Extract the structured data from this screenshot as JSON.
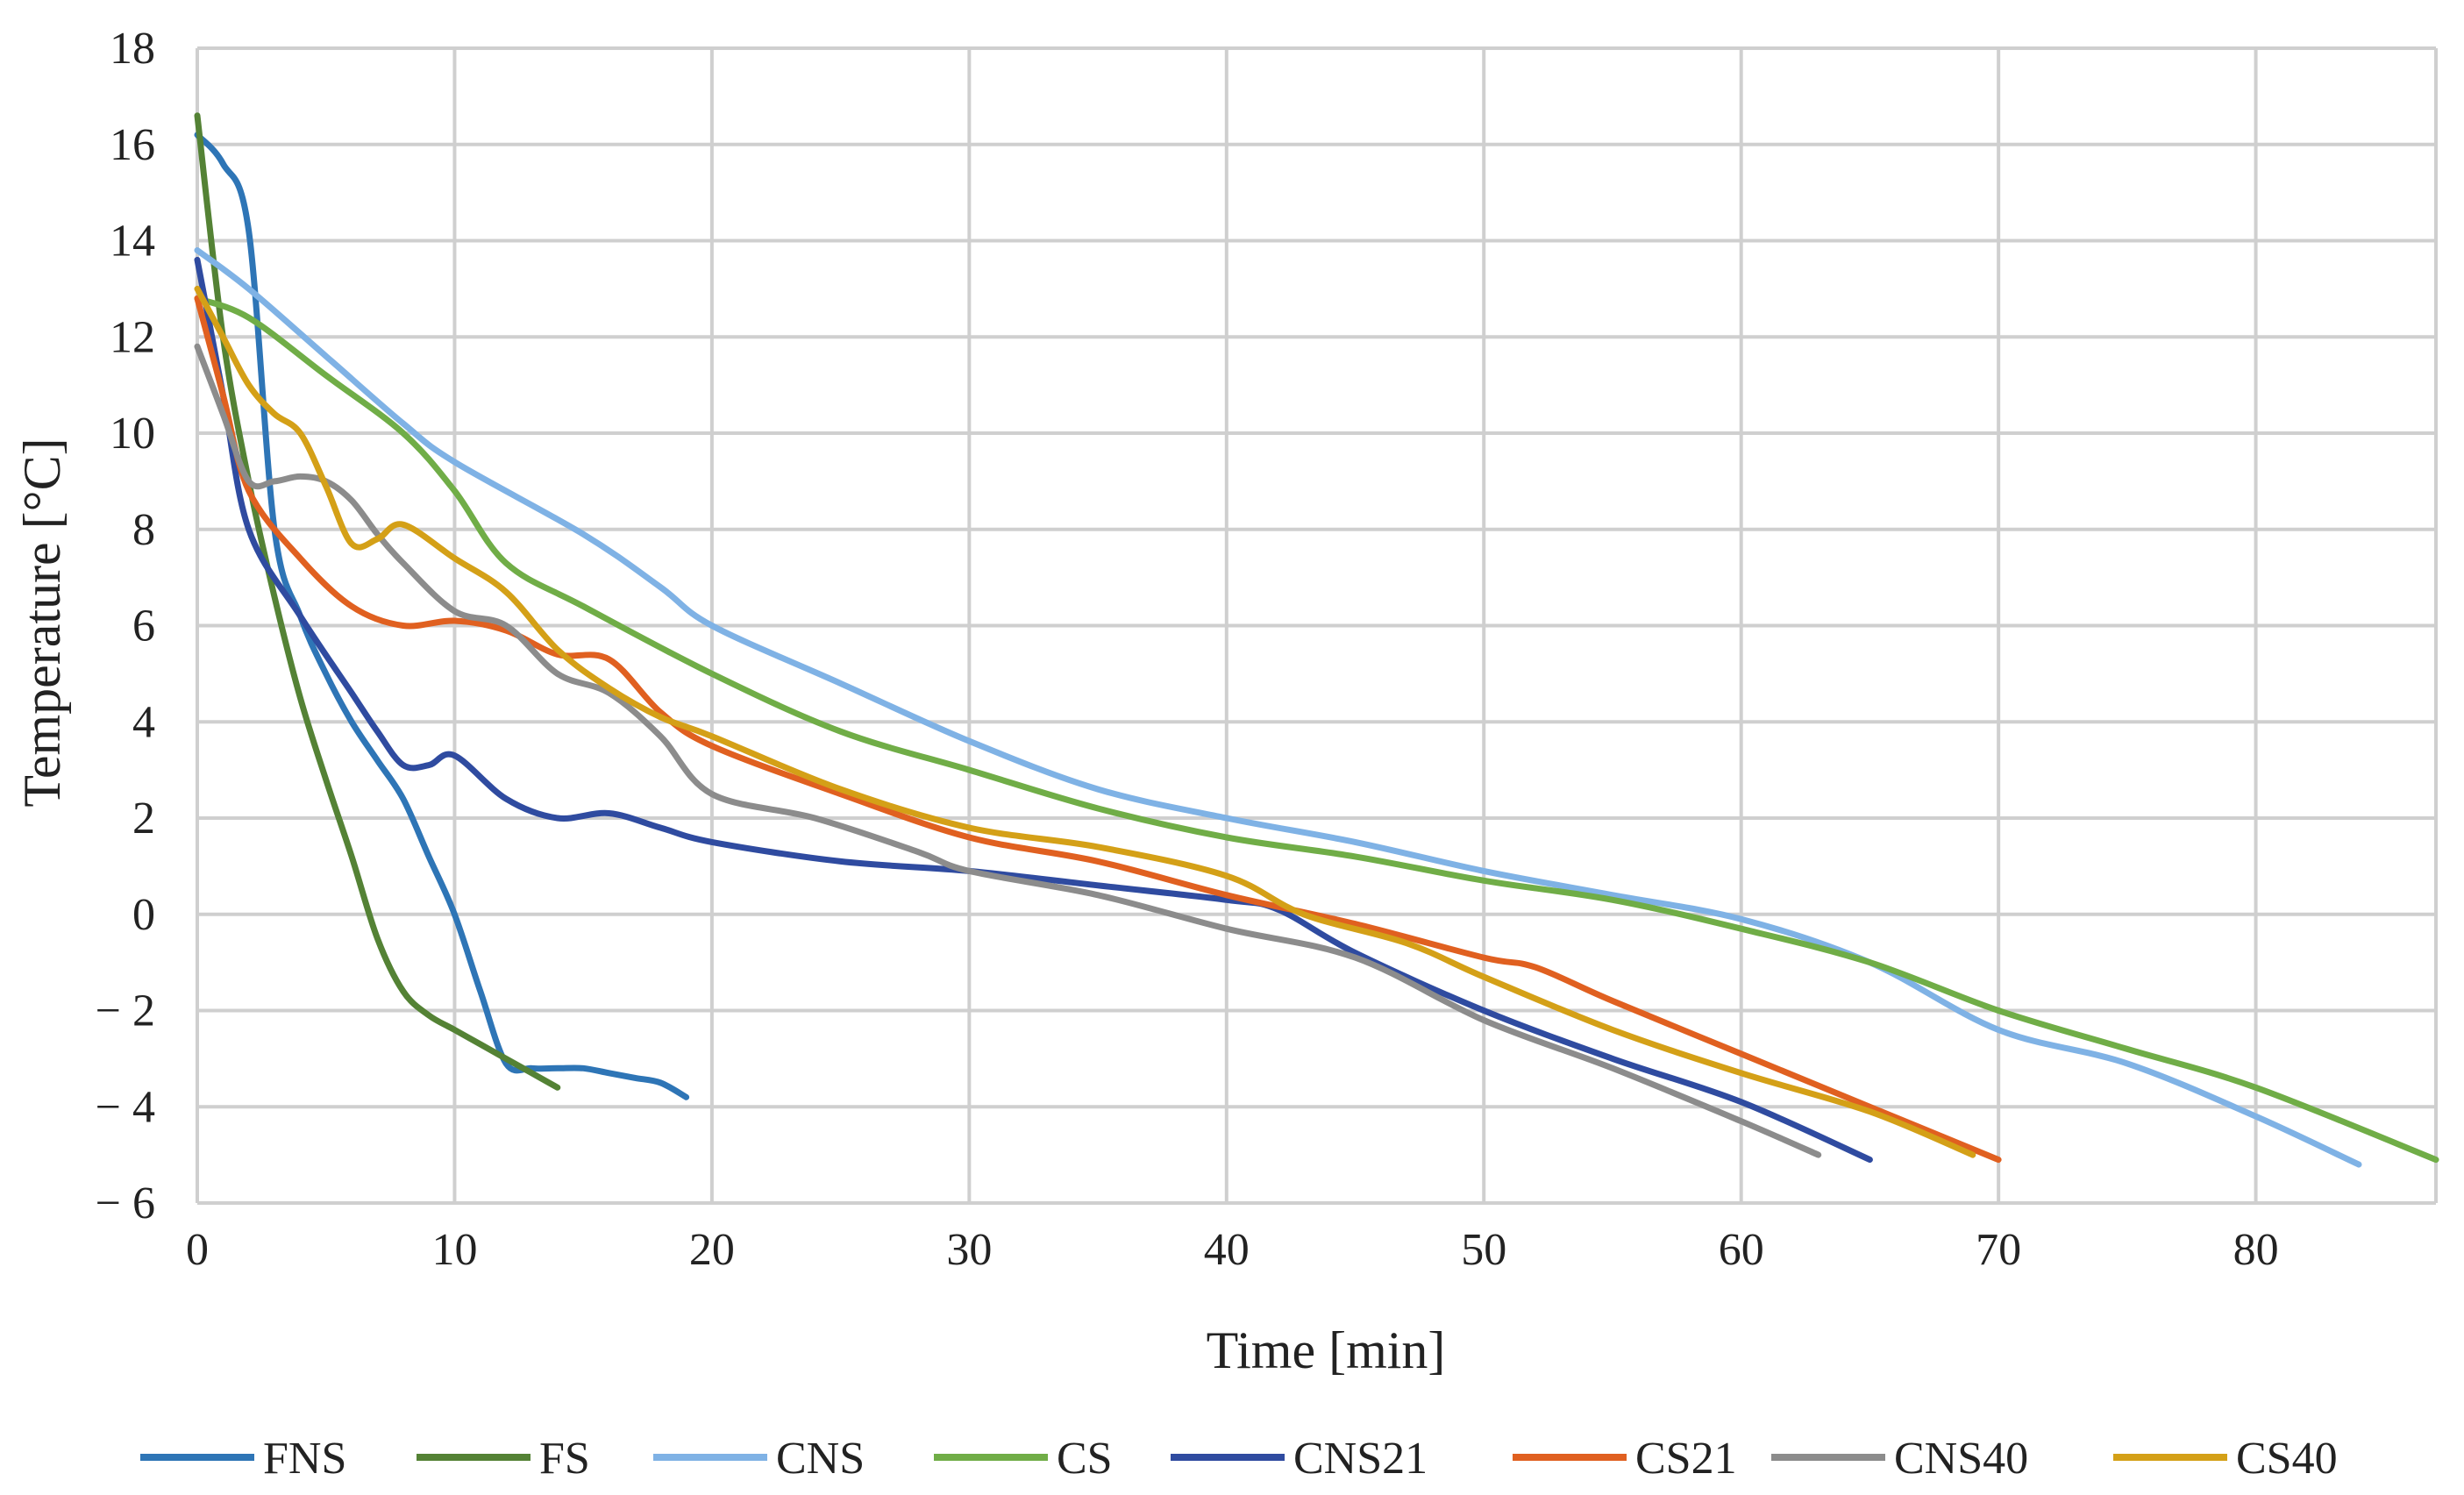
{
  "chart_data": {
    "type": "line",
    "title": "",
    "xlabel": "Time [min]",
    "ylabel": "Temperature [°C]",
    "xlim": [
      0,
      87
    ],
    "ylim": [
      -6,
      18
    ],
    "xticks": [
      "0",
      "10",
      "20",
      "30",
      "40",
      "50",
      "60",
      "70",
      "80"
    ],
    "yticks": [
      "18",
      "16",
      "14",
      "12",
      "10",
      "8",
      "6",
      "4",
      "2",
      "0",
      "− 2",
      "− 4",
      "− 6"
    ],
    "grid": true,
    "legend_position": "bottom",
    "series": [
      {
        "name": "FNS",
        "color": "#2E75B6",
        "points": [
          [
            0,
            16.2
          ],
          [
            1,
            15.6
          ],
          [
            2,
            14.2
          ],
          [
            3,
            8
          ],
          [
            4,
            6.2
          ],
          [
            5,
            5
          ],
          [
            6,
            4
          ],
          [
            7,
            3.2
          ],
          [
            8,
            2.4
          ],
          [
            9,
            1.2
          ],
          [
            10,
            0
          ],
          [
            11,
            -1.6
          ],
          [
            12,
            -3.1
          ],
          [
            13,
            -3.2
          ],
          [
            14,
            -3.2
          ],
          [
            15,
            -3.2
          ],
          [
            16,
            -3.3
          ],
          [
            17,
            -3.4
          ],
          [
            18,
            -3.5
          ],
          [
            19,
            -3.8
          ]
        ]
      },
      {
        "name": "FS",
        "color": "#548235",
        "points": [
          [
            0,
            16.6
          ],
          [
            1,
            12
          ],
          [
            2,
            9
          ],
          [
            3,
            6.6
          ],
          [
            4,
            4.5
          ],
          [
            5,
            2.8
          ],
          [
            6,
            1.2
          ],
          [
            7,
            -0.5
          ],
          [
            8,
            -1.6
          ],
          [
            9,
            -2.1
          ],
          [
            10,
            -2.4
          ],
          [
            11,
            -2.7
          ],
          [
            12,
            -3.0
          ],
          [
            13,
            -3.3
          ],
          [
            14,
            -3.6
          ]
        ]
      },
      {
        "name": "CNS",
        "color": "#7FB2E5",
        "points": [
          [
            0,
            13.8
          ],
          [
            2,
            13
          ],
          [
            5,
            11.6
          ],
          [
            8,
            10.2
          ],
          [
            10,
            9.4
          ],
          [
            15,
            7.9
          ],
          [
            18,
            6.8
          ],
          [
            20,
            6
          ],
          [
            25,
            4.8
          ],
          [
            30,
            3.6
          ],
          [
            35,
            2.6
          ],
          [
            40,
            2
          ],
          [
            45,
            1.5
          ],
          [
            50,
            0.9
          ],
          [
            55,
            0.4
          ],
          [
            60,
            -0.1
          ],
          [
            65,
            -1.0
          ],
          [
            70,
            -2.4
          ],
          [
            75,
            -3.1
          ],
          [
            80,
            -4.2
          ],
          [
            84,
            -5.2
          ]
        ]
      },
      {
        "name": "CS",
        "color": "#70AD47",
        "points": [
          [
            0,
            12.8
          ],
          [
            2,
            12.4
          ],
          [
            5,
            11.2
          ],
          [
            8,
            10
          ],
          [
            10,
            8.8
          ],
          [
            12,
            7.3
          ],
          [
            15,
            6.4
          ],
          [
            20,
            5
          ],
          [
            25,
            3.8
          ],
          [
            30,
            3
          ],
          [
            35,
            2.2
          ],
          [
            40,
            1.6
          ],
          [
            45,
            1.2
          ],
          [
            50,
            0.7
          ],
          [
            55,
            0.3
          ],
          [
            60,
            -0.3
          ],
          [
            65,
            -1.0
          ],
          [
            70,
            -2.0
          ],
          [
            75,
            -2.8
          ],
          [
            80,
            -3.6
          ],
          [
            87,
            -5.1
          ]
        ]
      },
      {
        "name": "CNS21",
        "color": "#2F4BA0",
        "points": [
          [
            0,
            13.6
          ],
          [
            1,
            10.8
          ],
          [
            2,
            8
          ],
          [
            4,
            6.2
          ],
          [
            6,
            4.6
          ],
          [
            7,
            3.8
          ],
          [
            8,
            3.1
          ],
          [
            9,
            3.1
          ],
          [
            10,
            3.3
          ],
          [
            12,
            2.4
          ],
          [
            14,
            2
          ],
          [
            16,
            2.1
          ],
          [
            18,
            1.8
          ],
          [
            20,
            1.5
          ],
          [
            25,
            1.1
          ],
          [
            30,
            0.9
          ],
          [
            35,
            0.6
          ],
          [
            40,
            0.3
          ],
          [
            42,
            0.1
          ],
          [
            45,
            -0.8
          ],
          [
            50,
            -2.0
          ],
          [
            55,
            -3
          ],
          [
            60,
            -3.9
          ],
          [
            65,
            -5.1
          ]
        ]
      },
      {
        "name": "CS21",
        "color": "#E06020",
        "points": [
          [
            0,
            12.8
          ],
          [
            1,
            10.8
          ],
          [
            2,
            8.8
          ],
          [
            4,
            7.4
          ],
          [
            6,
            6.4
          ],
          [
            8,
            6
          ],
          [
            10,
            6.1
          ],
          [
            12,
            5.9
          ],
          [
            14,
            5.4
          ],
          [
            16,
            5.3
          ],
          [
            18,
            4.2
          ],
          [
            20,
            3.5
          ],
          [
            25,
            2.5
          ],
          [
            30,
            1.6
          ],
          [
            35,
            1.1
          ],
          [
            40,
            0.4
          ],
          [
            45,
            -0.2
          ],
          [
            50,
            -0.9
          ],
          [
            52,
            -1.1
          ],
          [
            55,
            -1.8
          ],
          [
            60,
            -2.9
          ],
          [
            65,
            -4
          ],
          [
            70,
            -5.1
          ]
        ]
      },
      {
        "name": "CNS40",
        "color": "#8C8C8C",
        "points": [
          [
            0,
            11.8
          ],
          [
            1,
            10.4
          ],
          [
            2,
            9
          ],
          [
            3,
            9
          ],
          [
            4,
            9.1
          ],
          [
            5,
            9.0
          ],
          [
            6,
            8.6
          ],
          [
            7,
            7.9
          ],
          [
            8,
            7.3
          ],
          [
            10,
            6.3
          ],
          [
            12,
            6
          ],
          [
            14,
            5
          ],
          [
            16,
            4.6
          ],
          [
            18,
            3.7
          ],
          [
            20,
            2.5
          ],
          [
            24,
            2
          ],
          [
            28,
            1.3
          ],
          [
            30,
            0.9
          ],
          [
            35,
            0.4
          ],
          [
            40,
            -0.3
          ],
          [
            45,
            -0.9
          ],
          [
            50,
            -2.2
          ],
          [
            55,
            -3.2
          ],
          [
            60,
            -4.3
          ],
          [
            63,
            -5.0
          ]
        ]
      },
      {
        "name": "CS40",
        "color": "#D4A017",
        "points": [
          [
            0,
            13
          ],
          [
            1,
            12
          ],
          [
            2,
            11
          ],
          [
            3,
            10.4
          ],
          [
            4,
            10
          ],
          [
            5,
            8.9
          ],
          [
            6,
            7.7
          ],
          [
            7,
            7.8
          ],
          [
            8,
            8.1
          ],
          [
            10,
            7.4
          ],
          [
            12,
            6.7
          ],
          [
            14,
            5.5
          ],
          [
            16,
            4.7
          ],
          [
            18,
            4.1
          ],
          [
            20,
            3.7
          ],
          [
            25,
            2.6
          ],
          [
            30,
            1.8
          ],
          [
            35,
            1.4
          ],
          [
            40,
            0.8
          ],
          [
            43,
            0
          ],
          [
            47,
            -0.6
          ],
          [
            50,
            -1.3
          ],
          [
            55,
            -2.4
          ],
          [
            60,
            -3.3
          ],
          [
            65,
            -4.1
          ],
          [
            69,
            -5.0
          ]
        ]
      }
    ]
  }
}
